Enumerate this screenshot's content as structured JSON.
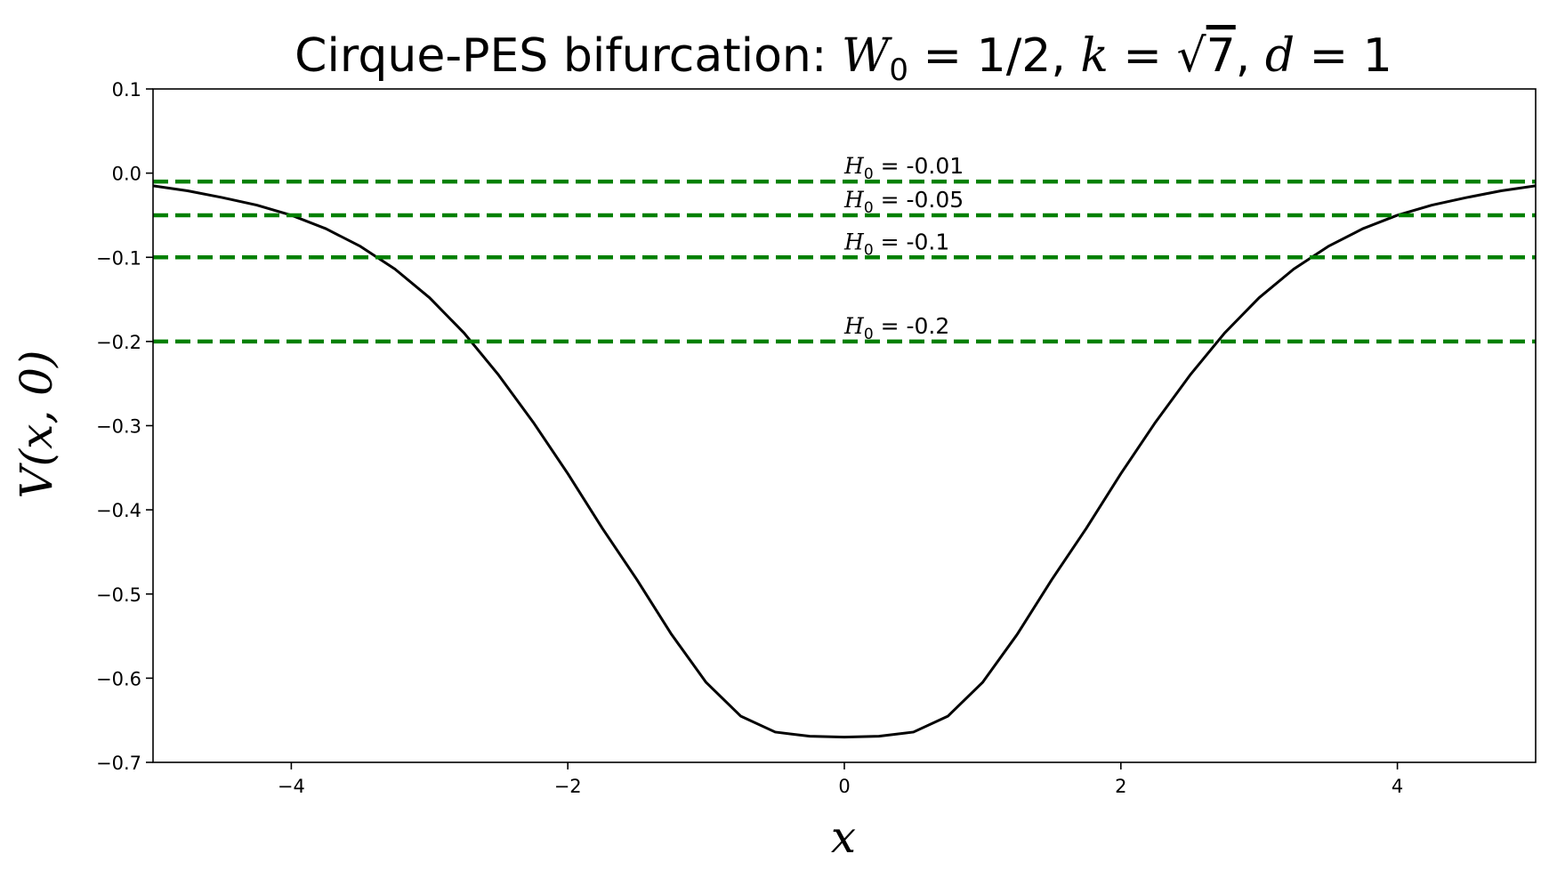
{
  "chart_data": {
    "type": "line",
    "title": "Cirque-PES bifurcation: W₀ = 1/2, k = √7, d = 1",
    "title_parts": {
      "prefix": "Cirque-PES bifurcation: ",
      "w_sym": "W",
      "w_sub": "0",
      "w_val": " = 1/2, ",
      "k_sym": "k",
      "k_eq": " = ",
      "k_rad": "√",
      "k_arg": "7",
      "sep": ", ",
      "d_sym": "d",
      "d_val": " = 1"
    },
    "xlabel": "x",
    "ylabel": "V(x, 0)",
    "xlim": [
      -5,
      5
    ],
    "ylim": [
      -0.7,
      0.1
    ],
    "xticks": [
      -4,
      -2,
      0,
      2,
      4
    ],
    "xtick_labels": [
      "−4",
      "−2",
      "0",
      "2",
      "4"
    ],
    "yticks": [
      0.1,
      0.0,
      -0.1,
      -0.2,
      -0.3,
      -0.4,
      -0.5,
      -0.6,
      -0.7
    ],
    "ytick_labels": [
      "0.1",
      "0.0",
      "−0.1",
      "−0.2",
      "−0.3",
      "−0.4",
      "−0.5",
      "−0.6",
      "−0.7"
    ],
    "grid": false,
    "curve_color": "#000000",
    "hline_color": "#008000",
    "curve": {
      "x": [
        -5.0,
        -4.75,
        -4.5,
        -4.25,
        -4.0,
        -3.75,
        -3.5,
        -3.25,
        -3.0,
        -2.75,
        -2.5,
        -2.25,
        -2.0,
        -1.75,
        -1.5,
        -1.25,
        -1.0,
        -0.75,
        -0.5,
        -0.25,
        0.0,
        0.25,
        0.5,
        0.75,
        1.0,
        1.25,
        1.5,
        1.75,
        2.0,
        2.25,
        2.5,
        2.75,
        3.0,
        3.25,
        3.5,
        3.75,
        4.0,
        4.25,
        4.5,
        4.75,
        5.0
      ],
      "y": [
        -0.015,
        -0.021,
        -0.029,
        -0.038,
        -0.05,
        -0.066,
        -0.087,
        -0.114,
        -0.148,
        -0.19,
        -0.24,
        -0.296,
        -0.357,
        -0.422,
        -0.483,
        -0.548,
        -0.605,
        -0.645,
        -0.664,
        -0.669,
        -0.67,
        -0.669,
        -0.664,
        -0.645,
        -0.605,
        -0.548,
        -0.483,
        -0.422,
        -0.357,
        -0.296,
        -0.24,
        -0.19,
        -0.148,
        -0.114,
        -0.087,
        -0.066,
        -0.05,
        -0.038,
        -0.029,
        -0.021,
        -0.015
      ]
    },
    "hlines": [
      {
        "y": -0.01,
        "sym": "H",
        "sub": "0",
        "eq": " = ",
        "value": "-0.01"
      },
      {
        "y": -0.05,
        "sym": "H",
        "sub": "0",
        "eq": " = ",
        "value": "-0.05"
      },
      {
        "y": -0.1,
        "sym": "H",
        "sub": "0",
        "eq": " = ",
        "value": "-0.1"
      },
      {
        "y": -0.2,
        "sym": "H",
        "sub": "0",
        "eq": " = ",
        "value": "-0.2"
      }
    ]
  }
}
